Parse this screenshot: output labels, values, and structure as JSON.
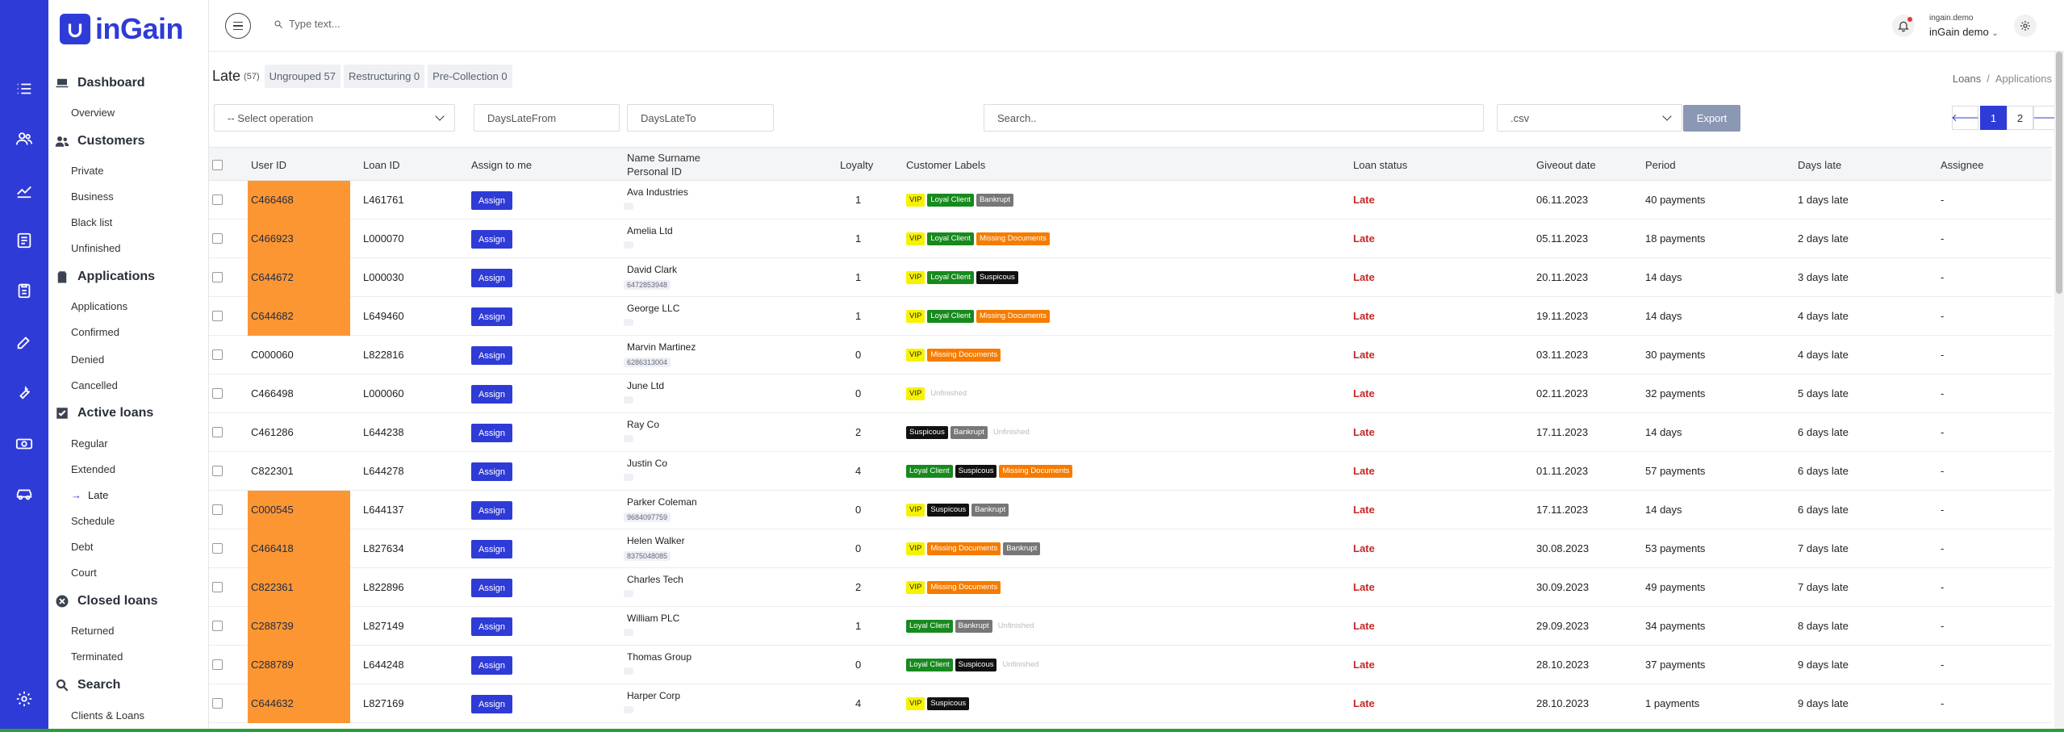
{
  "brand": {
    "name": "inGain"
  },
  "top": {
    "search_placeholder": "Type text...",
    "user_small": "ingain.demo",
    "user_name": "inGain demo",
    "user_chevron": "⌄"
  },
  "sidebar": {
    "sections": [
      {
        "label": "Dashboard",
        "icon": "laptop-icon"
      },
      {
        "label": "Customers",
        "icon": "users-icon"
      },
      {
        "label": "Applications",
        "icon": "clipboard-icon"
      },
      {
        "label": "Active loans",
        "icon": "check-square-icon"
      },
      {
        "label": "Closed loans",
        "icon": "x-circle-icon"
      },
      {
        "label": "Search",
        "icon": "search-icon"
      }
    ],
    "items": {
      "dashboard": [
        "Overview"
      ],
      "customers": [
        "Private",
        "Business",
        "Black list",
        "Unfinished"
      ],
      "applications": [
        "Applications",
        "Confirmed",
        "Denied",
        "Cancelled"
      ],
      "active": [
        "Regular",
        "Extended",
        "Late",
        "Schedule",
        "Debt",
        "Court"
      ],
      "closed": [
        "Returned",
        "Terminated"
      ],
      "search": [
        "Clients & Loans"
      ]
    }
  },
  "page": {
    "title": "Late",
    "count": "(57)",
    "tabs": [
      "Ungrouped 57",
      "Restructuring 0",
      "Pre-Collection 0"
    ],
    "breadcrumb": [
      "Loans",
      "/",
      "Applications"
    ]
  },
  "controls": {
    "operation_placeholder": "-- Select operation",
    "days_from_placeholder": "DaysLateFrom",
    "days_to_placeholder": "DaysLateTo",
    "search_placeholder": "Search..",
    "format_value": ".csv",
    "export_label": "Export",
    "pages": [
      "1",
      "2"
    ],
    "prev": "🡐",
    "next": "🡒"
  },
  "table": {
    "headers": {
      "user_id": "User ID",
      "loan_id": "Loan ID",
      "assign": "Assign to me",
      "name": "Name Surname",
      "personal": "Personal ID",
      "loyalty": "Loyalty",
      "labels": "Customer Labels",
      "status": "Loan status",
      "giveout": "Giveout date",
      "period": "Period",
      "days_late": "Days late",
      "assignee": "Assignee"
    },
    "assign_label": "Assign",
    "highlight_color": "#fb9633",
    "rows": [
      {
        "uid": "C466468",
        "hl": true,
        "loan": "L461761",
        "name": "Ava Industries",
        "pid": "",
        "loyalty": "1",
        "labels": [
          "VIP",
          "Loyal Client",
          "Bankrupt"
        ],
        "status": "Late",
        "date": "06.11.2023",
        "period": "40 payments",
        "late": "1 days late",
        "assignee": "-"
      },
      {
        "uid": "C466923",
        "hl": true,
        "loan": "L000070",
        "name": "Amelia Ltd",
        "pid": "",
        "loyalty": "1",
        "labels": [
          "VIP",
          "Loyal Client",
          "Missing Documents"
        ],
        "status": "Late",
        "date": "05.11.2023",
        "period": "18 payments",
        "late": "2 days late",
        "assignee": "-"
      },
      {
        "uid": "C644672",
        "hl": true,
        "loan": "L000030",
        "name": "David Clark",
        "pid": "6472853948",
        "loyalty": "1",
        "labels": [
          "VIP",
          "Loyal Client",
          "Suspicous"
        ],
        "status": "Late",
        "date": "20.11.2023",
        "period": "14 days",
        "late": "3 days late",
        "assignee": "-"
      },
      {
        "uid": "C644682",
        "hl": true,
        "loan": "L649460",
        "name": "George LLC",
        "pid": "",
        "loyalty": "1",
        "labels": [
          "VIP",
          "Loyal Client",
          "Missing Documents"
        ],
        "status": "Late",
        "date": "19.11.2023",
        "period": "14 days",
        "late": "4 days late",
        "assignee": "-"
      },
      {
        "uid": "C000060",
        "hl": false,
        "loan": "L822816",
        "name": "Marvin Martinez",
        "pid": "6286313004",
        "loyalty": "0",
        "labels": [
          "VIP",
          "Missing Documents"
        ],
        "status": "Late",
        "date": "03.11.2023",
        "period": "30 payments",
        "late": "4 days late",
        "assignee": "-"
      },
      {
        "uid": "C466498",
        "hl": false,
        "loan": "L000060",
        "name": "June Ltd",
        "pid": "",
        "loyalty": "0",
        "labels": [
          "VIP",
          "Unfinished"
        ],
        "status": "Late",
        "date": "02.11.2023",
        "period": "32 payments",
        "late": "5 days late",
        "assignee": "-"
      },
      {
        "uid": "C461286",
        "hl": false,
        "loan": "L644238",
        "name": "Ray Co",
        "pid": "",
        "loyalty": "2",
        "labels": [
          "Suspicous",
          "Bankrupt",
          "Unfinished"
        ],
        "status": "Late",
        "date": "17.11.2023",
        "period": "14 days",
        "late": "6 days late",
        "assignee": "-"
      },
      {
        "uid": "C822301",
        "hl": false,
        "loan": "L644278",
        "name": "Justin Co",
        "pid": "",
        "loyalty": "4",
        "labels": [
          "Loyal Client",
          "Suspicous",
          "Missing Documents"
        ],
        "status": "Late",
        "date": "01.11.2023",
        "period": "57 payments",
        "late": "6 days late",
        "assignee": "-"
      },
      {
        "uid": "C000545",
        "hl": true,
        "loan": "L644137",
        "name": "Parker Coleman",
        "pid": "9684097759",
        "loyalty": "0",
        "labels": [
          "VIP",
          "Suspicous",
          "Bankrupt"
        ],
        "status": "Late",
        "date": "17.11.2023",
        "period": "14 days",
        "late": "6 days late",
        "assignee": "-"
      },
      {
        "uid": "C466418",
        "hl": true,
        "loan": "L827634",
        "name": "Helen Walker",
        "pid": "8375048085",
        "loyalty": "0",
        "labels": [
          "VIP",
          "Missing Documents",
          "Bankrupt"
        ],
        "status": "Late",
        "date": "30.08.2023",
        "period": "53 payments",
        "late": "7 days late",
        "assignee": "-"
      },
      {
        "uid": "C822361",
        "hl": true,
        "loan": "L822896",
        "name": "Charles Tech",
        "pid": "",
        "loyalty": "2",
        "labels": [
          "VIP",
          "Missing Documents"
        ],
        "status": "Late",
        "date": "30.09.2023",
        "period": "49 payments",
        "late": "7 days late",
        "assignee": "-"
      },
      {
        "uid": "C288739",
        "hl": true,
        "loan": "L827149",
        "name": "William PLC",
        "pid": "",
        "loyalty": "1",
        "labels": [
          "Loyal Client",
          "Bankrupt",
          "Unfinished"
        ],
        "status": "Late",
        "date": "29.09.2023",
        "period": "34 payments",
        "late": "8 days late",
        "assignee": "-"
      },
      {
        "uid": "C288789",
        "hl": true,
        "loan": "L644248",
        "name": "Thomas Group",
        "pid": "",
        "loyalty": "0",
        "labels": [
          "Loyal Client",
          "Suspicous",
          "Unfinished"
        ],
        "status": "Late",
        "date": "28.10.2023",
        "period": "37 payments",
        "late": "9 days late",
        "assignee": "-"
      },
      {
        "uid": "C644632",
        "hl": true,
        "loan": "L827169",
        "name": "Harper Corp",
        "pid": "",
        "loyalty": "4",
        "labels": [
          "VIP",
          "Suspicous"
        ],
        "status": "Late",
        "date": "28.10.2023",
        "period": "1 payments",
        "late": "9 days late",
        "assignee": "-"
      }
    ]
  },
  "colors": {
    "accent": "#2f3bd6",
    "late_text": "#c62828",
    "vip": "#f6f200",
    "loyal": "#178a1e",
    "missing": "#f57c00",
    "suspicious": "#111111",
    "bankrupt": "#777777"
  }
}
